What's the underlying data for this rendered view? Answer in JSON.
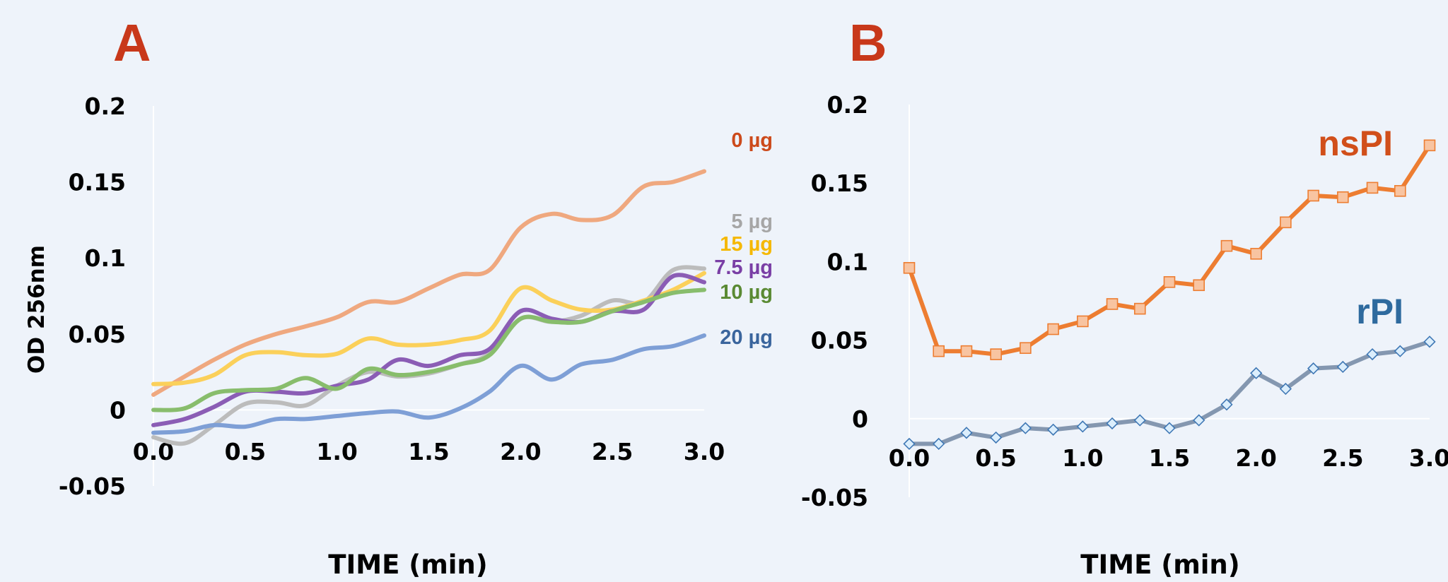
{
  "chart_data": [
    {
      "type": "line",
      "panel": "A",
      "xlabel": "TIME (min)",
      "ylabel": "OD 256nm",
      "xlim": [
        0,
        3
      ],
      "ylim": [
        -0.05,
        0.2
      ],
      "xticks": [
        "0.0",
        "0.5",
        "1.0",
        "1.5",
        "2.0",
        "2.5",
        "3.0"
      ],
      "yticks": [
        "0.2",
        "0.15",
        "0.1",
        "0.05",
        "0",
        "-0.05"
      ],
      "grid": false,
      "x": [
        0,
        0.17,
        0.33,
        0.5,
        0.67,
        0.83,
        1.0,
        1.17,
        1.33,
        1.5,
        1.67,
        1.83,
        2.0,
        2.17,
        2.33,
        2.5,
        2.67,
        2.83,
        3.0
      ],
      "series": [
        {
          "name": "0 µg",
          "color": "#efa87f",
          "values": [
            0.01,
            0.022,
            0.033,
            0.043,
            0.05,
            0.055,
            0.061,
            0.071,
            0.071,
            0.08,
            0.089,
            0.092,
            0.12,
            0.129,
            0.125,
            0.128,
            0.147,
            0.15,
            0.157
          ]
        },
        {
          "name": "5 µg",
          "color": "#bcbcbc",
          "values": [
            -0.018,
            -0.022,
            -0.01,
            0.004,
            0.005,
            0.003,
            0.016,
            0.025,
            0.022,
            0.024,
            0.03,
            0.037,
            0.06,
            0.058,
            0.062,
            0.072,
            0.071,
            0.092,
            0.093
          ]
        },
        {
          "name": "15 µg",
          "color": "#fbd05a",
          "values": [
            0.017,
            0.018,
            0.023,
            0.036,
            0.038,
            0.036,
            0.037,
            0.047,
            0.043,
            0.043,
            0.046,
            0.052,
            0.08,
            0.072,
            0.066,
            0.066,
            0.072,
            0.079,
            0.09
          ]
        },
        {
          "name": "7.5 µg",
          "color": "#8b5db5",
          "values": [
            -0.01,
            -0.006,
            0.002,
            0.012,
            0.012,
            0.011,
            0.016,
            0.02,
            0.033,
            0.029,
            0.036,
            0.04,
            0.065,
            0.06,
            0.058,
            0.065,
            0.066,
            0.088,
            0.084
          ]
        },
        {
          "name": "10 µg",
          "color": "#88bd6c",
          "values": [
            0.0,
            0.001,
            0.011,
            0.013,
            0.014,
            0.021,
            0.014,
            0.027,
            0.023,
            0.025,
            0.03,
            0.036,
            0.06,
            0.058,
            0.058,
            0.065,
            0.071,
            0.077,
            0.079
          ]
        },
        {
          "name": "20 µg",
          "color": "#7e9fd6",
          "values": [
            -0.015,
            -0.014,
            -0.01,
            -0.011,
            -0.006,
            -0.006,
            -0.004,
            -0.002,
            -0.001,
            -0.005,
            0.001,
            0.012,
            0.029,
            0.02,
            0.03,
            0.033,
            0.04,
            0.042,
            0.049
          ]
        }
      ],
      "label_colors": [
        "#cc4a1b",
        "#a6a6a6",
        "#f5b800",
        "#7a3fa5",
        "#5a8a33",
        "#3a659d"
      ]
    },
    {
      "type": "line",
      "panel": "B",
      "xlabel": "TIME (min)",
      "ylabel": "",
      "xlim": [
        0,
        3
      ],
      "ylim": [
        -0.05,
        0.2
      ],
      "xticks": [
        "0.0",
        "0.5",
        "1.0",
        "1.5",
        "2.0",
        "2.5",
        "3.0"
      ],
      "yticks": [
        "0.2",
        "0.15",
        "0.1",
        "0.05",
        "0",
        "-0.05"
      ],
      "grid": false,
      "x": [
        0,
        0.17,
        0.33,
        0.5,
        0.67,
        0.83,
        1.0,
        1.17,
        1.33,
        1.5,
        1.67,
        1.83,
        2.0,
        2.17,
        2.33,
        2.5,
        2.67,
        2.83,
        3.0
      ],
      "series": [
        {
          "name": "nsPI",
          "color": "#ed7d31",
          "label_color": "#d14f1a",
          "marker": "square",
          "marker_fill": "#f8c4a1",
          "values": [
            0.096,
            0.043,
            0.043,
            0.041,
            0.045,
            0.057,
            0.062,
            0.073,
            0.07,
            0.087,
            0.085,
            0.11,
            0.105,
            0.125,
            0.142,
            0.141,
            0.147,
            0.145,
            0.174
          ]
        },
        {
          "name": "rPI",
          "color": "#8497b0",
          "label_color": "#2e6a9e",
          "marker": "diamond",
          "marker_fill": "#dbeefc",
          "values": [
            -0.016,
            -0.016,
            -0.009,
            -0.012,
            -0.006,
            -0.007,
            -0.005,
            -0.003,
            -0.001,
            -0.006,
            -0.001,
            0.009,
            0.029,
            0.019,
            0.032,
            0.033,
            0.041,
            0.043,
            0.049
          ]
        }
      ]
    }
  ]
}
